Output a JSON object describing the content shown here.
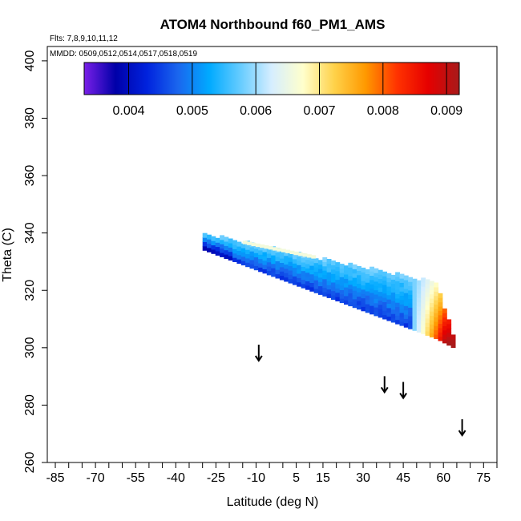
{
  "chart_data": {
    "type": "heatmap",
    "title": "ATOM4 Northbound f60_PM1_AMS",
    "flights_text": "Flts: 7,8,9,10,11,12",
    "mmdd_text": "MMDD: 0509,0512,0514,0517,0518,0519",
    "xlabel": "Latitude (deg N)",
    "ylabel": "Theta (C)",
    "xlim": [
      -88,
      80
    ],
    "ylim": [
      260,
      405
    ],
    "x_ticks": [
      -85,
      -70,
      -55,
      -40,
      -25,
      -10,
      5,
      15,
      30,
      45,
      60,
      75
    ],
    "x_tick_labels": [
      "-85",
      "-70",
      "-55",
      "-40",
      "-25",
      "-10",
      "5",
      "15",
      "30",
      "45",
      "60",
      "75"
    ],
    "x_minor_step": 5,
    "y_ticks": [
      260,
      280,
      300,
      320,
      340,
      360,
      380,
      400
    ],
    "y_tick_labels": [
      "260",
      "280",
      "300",
      "320",
      "340",
      "360",
      "380",
      "400"
    ],
    "colorbar": {
      "range": [
        0.0033,
        0.0092
      ],
      "ticks": [
        0.004,
        0.005,
        0.006,
        0.007,
        0.008,
        0.009
      ],
      "tick_labels": [
        "0.004",
        "0.005",
        "0.006",
        "0.007",
        "0.008",
        "0.009"
      ],
      "colors": [
        "#7a1fe8",
        "#0000a8",
        "#0022dd",
        "#1a66ee",
        "#00aaff",
        "#66ccff",
        "#d6eeff",
        "#ffffcc",
        "#ffd24a",
        "#ff9900",
        "#ff3300",
        "#e60000",
        "#a81a1a"
      ]
    },
    "arrows": [
      {
        "latitude": -9,
        "theta": 298
      },
      {
        "latitude": 38,
        "theta": 287
      },
      {
        "latitude": 45,
        "theta": 285
      },
      {
        "latitude": 67,
        "theta": 272
      }
    ],
    "field_regions": [
      {
        "name": "main-band",
        "lat": [
          -30,
          57
        ],
        "theta_top_at_min_lat": 339,
        "theta_top_at_max_lat": 322,
        "theta_bottom_at_min_lat": 334,
        "theta_bottom_at_max_lat": 303
      },
      {
        "name": "high-value-wedge",
        "lat": [
          50,
          63
        ],
        "values_max": 0.0091
      }
    ]
  }
}
